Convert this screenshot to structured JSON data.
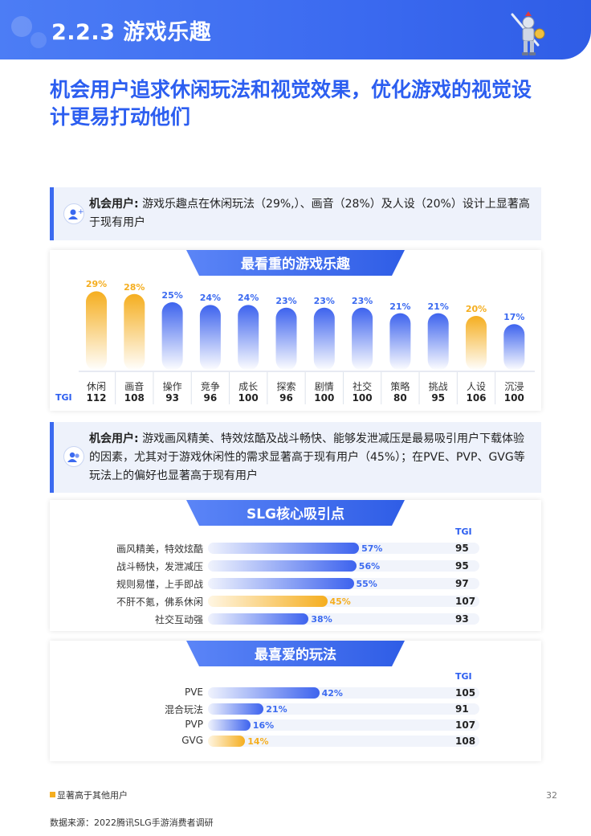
{
  "header": {
    "title": "2.2.3 游戏乐趣"
  },
  "headline": "机会用户追求休闲玩法和视觉效果，优化游戏的视觉设计更易打动他们",
  "colors": {
    "accent": "#3b6af0",
    "highlight": "#f5ae1f",
    "bar_blue": "#3d63ee"
  },
  "note1": {
    "bold": "机会用户:",
    "text": "游戏乐趣点在休闲玩法（29%,）、画音（28%）及人设（20%）设计上显著高于现有用户"
  },
  "note2": {
    "bold": "机会用户:",
    "text": "游戏画风精美、特效炫酷及战斗畅快、能够发泄减压是最易吸引用户下载体验的因素，尤其对于游戏休闲性的需求显著高于现有用户（45%）；在PVE、PVP、GVG等玩法上的偏好也显著高于现有用户"
  },
  "chart_data": [
    {
      "type": "bar",
      "title": "最看重的游戏乐趣",
      "tgi_label": "TGI",
      "categories": [
        "休闲",
        "画音",
        "操作",
        "竞争",
        "成长",
        "探索",
        "剧情",
        "社交",
        "策略",
        "挑战",
        "人设",
        "沉浸"
      ],
      "values": [
        29,
        28,
        25,
        24,
        24,
        23,
        23,
        23,
        21,
        21,
        20,
        17
      ],
      "value_labels": [
        "29%",
        "28%",
        "25%",
        "24%",
        "24%",
        "23%",
        "23%",
        "23%",
        "21%",
        "21%",
        "20%",
        "17%"
      ],
      "tgi": [
        "112",
        "108",
        "93",
        "96",
        "100",
        "96",
        "100",
        "100",
        "80",
        "95",
        "106",
        "100"
      ],
      "highlighted": [
        true,
        true,
        false,
        false,
        false,
        false,
        false,
        false,
        false,
        false,
        true,
        false
      ]
    },
    {
      "type": "bar",
      "orientation": "horizontal",
      "title": "SLG核心吸引点",
      "tgi_label": "TGI",
      "categories": [
        "画风精美，特效炫酷",
        "战斗畅快，发泄减压",
        "规则易懂，上手即战",
        "不肝不氪，佛系休闲",
        "社交互动强"
      ],
      "values": [
        57,
        56,
        55,
        45,
        38
      ],
      "value_labels": [
        "57%",
        "56%",
        "55%",
        "45%",
        "38%"
      ],
      "tgi": [
        "95",
        "95",
        "97",
        "107",
        "93"
      ],
      "highlighted": [
        false,
        false,
        false,
        true,
        false
      ]
    },
    {
      "type": "bar",
      "orientation": "horizontal",
      "title": "最喜爱的玩法",
      "tgi_label": "TGI",
      "categories": [
        "PVE",
        "混合玩法",
        "PVP",
        "GVG"
      ],
      "values": [
        42,
        21,
        16,
        14
      ],
      "value_labels": [
        "42%",
        "21%",
        "16%",
        "14%"
      ],
      "tgi": [
        "105",
        "91",
        "107",
        "108"
      ],
      "highlighted": [
        false,
        false,
        false,
        true
      ]
    }
  ],
  "legend": "显著高于其他用户",
  "page_number": "32",
  "source": "数据来源：2022腾讯SLG手游消费者调研"
}
